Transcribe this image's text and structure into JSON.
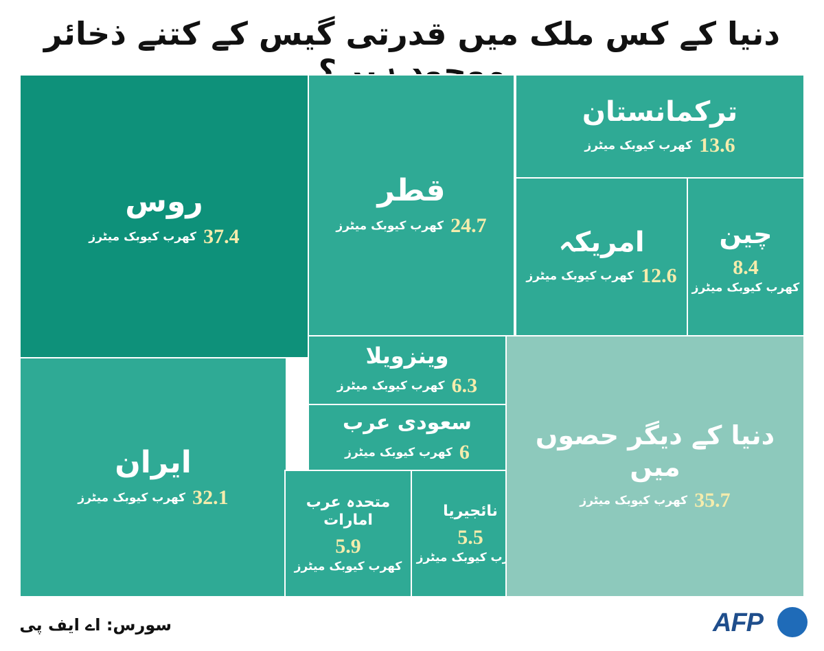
{
  "header": {
    "title": "دنیا کے کس ملک میں قدرتی گیس کے کتنے ذخائر موجود ہیں؟"
  },
  "footer": {
    "source": "سورس: اے ایف پی",
    "logo": "AFP"
  },
  "colors": {
    "dark": "#0e917a",
    "medium": "#2faa95",
    "light": "#8dc9bc",
    "value": "#f5ecac"
  },
  "chart_data": {
    "type": "treemap",
    "title": "دنیا کے کس ملک میں قدرتی گیس کے کتنے ذخائر موجود ہیں؟",
    "unit": "کھرب کیوبک میٹرز",
    "items": [
      {
        "name": "روس",
        "value": 37.4,
        "value_label": "37.4",
        "unit": "کھرب کیوبک میٹرز"
      },
      {
        "name": "ایران",
        "value": 32.1,
        "value_label": "32.1",
        "unit": "کھرب کیوبک میٹرز"
      },
      {
        "name": "قطر",
        "value": 24.7,
        "value_label": "24.7",
        "unit": "کھرب کیوبک میٹرز"
      },
      {
        "name": "ترکمانستان",
        "value": 13.6,
        "value_label": "13.6",
        "unit": "کھرب کیوبک میٹرز"
      },
      {
        "name": "امریکہ",
        "value": 12.6,
        "value_label": "12.6",
        "unit": "کھرب کیوبک میٹرز"
      },
      {
        "name": "چین",
        "value": 8.4,
        "value_label": "8.4",
        "unit": "کھرب کیوبک میٹرز"
      },
      {
        "name": "وینزویلا",
        "value": 6.3,
        "value_label": "6.3",
        "unit": "کھرب کیوبک میٹرز"
      },
      {
        "name": "سعودی عرب",
        "value": 6,
        "value_label": "6",
        "unit": "کھرب کیوبک میٹرز"
      },
      {
        "name": "متحدہ عرب امارات",
        "value": 5.9,
        "value_label": "5.9",
        "unit": "کھرب کیوبک میٹرز"
      },
      {
        "name": "نائجیریا",
        "value": 5.5,
        "value_label": "5.5",
        "unit": "کھرب کیوبک میٹرز"
      },
      {
        "name": "دنیا کے دیگر حصوں میں",
        "value": 35.7,
        "value_label": "35.7",
        "unit": "کھرب کیوبک میٹرز"
      }
    ]
  }
}
